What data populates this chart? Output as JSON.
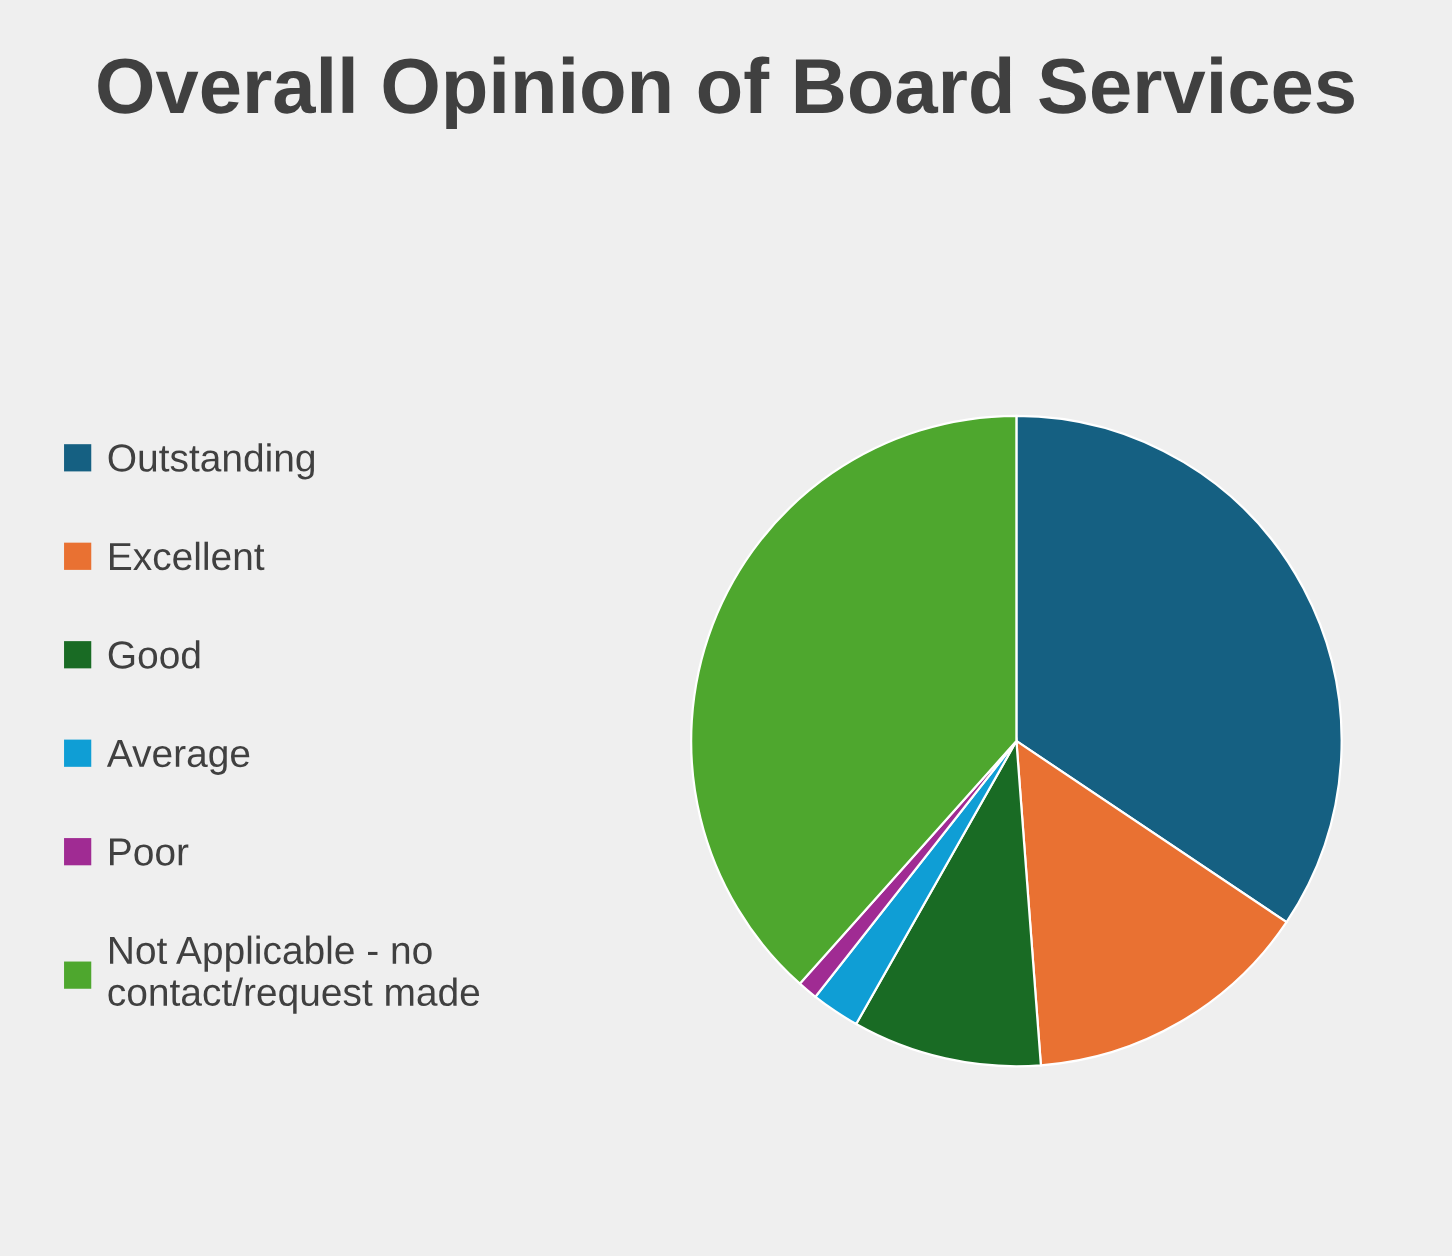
{
  "chart_data": {
    "type": "pie",
    "title": "Overall Opinion of Board Services",
    "categories": [
      "Outstanding",
      "Excellent",
      "Good",
      "Average",
      "Poor",
      "Not Applicable - no contact/request made"
    ],
    "values": [
      34.4,
      14.4,
      9.4,
      2.4,
      1.0,
      38.4
    ],
    "colors": [
      "#156082",
      "#e97132",
      "#196b24",
      "#0f9ed5",
      "#a02b93",
      "#4ea72e"
    ],
    "legend": "left"
  }
}
